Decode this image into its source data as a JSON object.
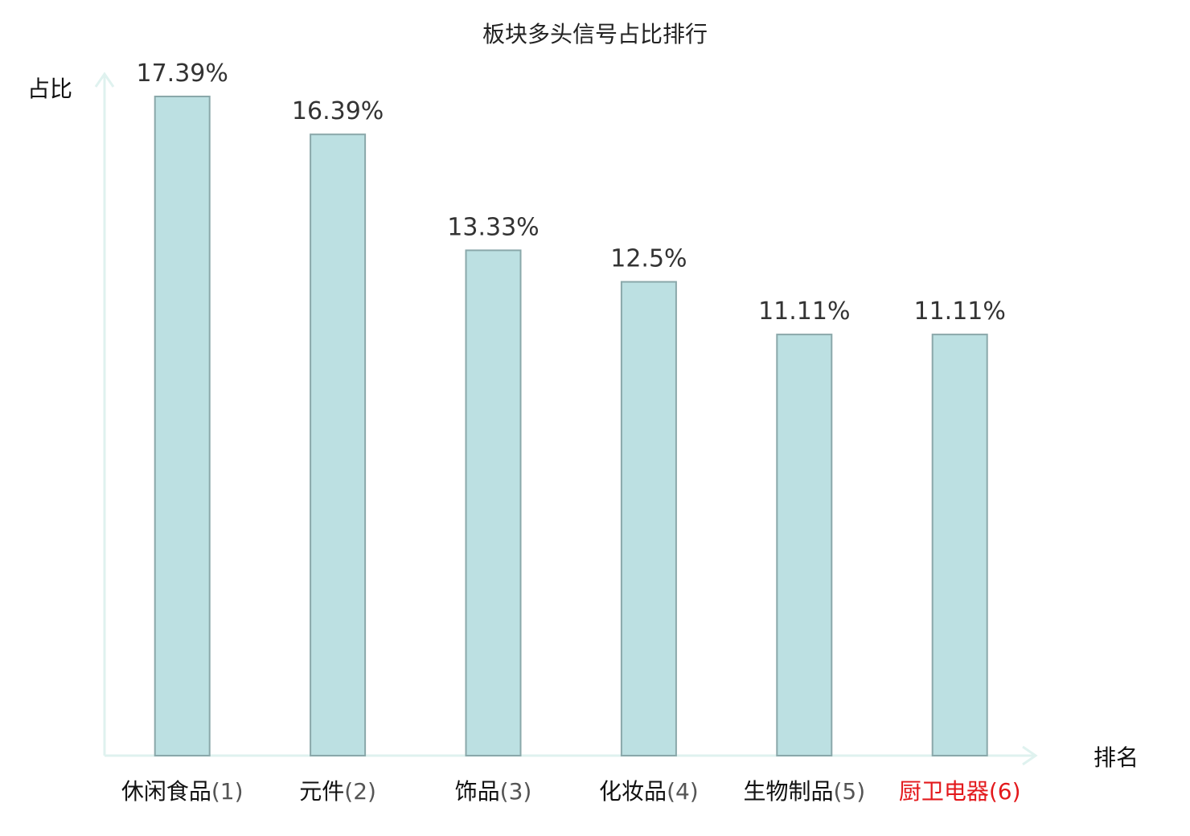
{
  "chart_data": {
    "type": "bar",
    "title": "板块多头信号占比排行",
    "xlabel": "排名",
    "ylabel": "占比",
    "categories": [
      {
        "name": "休闲食品",
        "rank": "(1)"
      },
      {
        "name": "元件",
        "rank": "(2)"
      },
      {
        "name": "饰品",
        "rank": "(3)"
      },
      {
        "name": "化妆品",
        "rank": "(4)"
      },
      {
        "name": "生物制品",
        "rank": "(5)"
      },
      {
        "name": "厨卫电器",
        "rank": "(6)"
      }
    ],
    "values": [
      17.39,
      16.39,
      13.33,
      12.5,
      11.11,
      11.11
    ],
    "value_labels": [
      "17.39%",
      "16.39%",
      "13.33%",
      "12.5%",
      "11.11%",
      "11.11%"
    ],
    "highlight_index": 5,
    "ylim": [
      0,
      17.39
    ],
    "grid": false,
    "colors": {
      "bar_fill": "#bce0e2",
      "bar_stroke": "#8aa8aa",
      "axis": "#dff2ef",
      "label_default": "#111111",
      "rank_default": "#555555",
      "highlight": "#e3191c"
    }
  }
}
